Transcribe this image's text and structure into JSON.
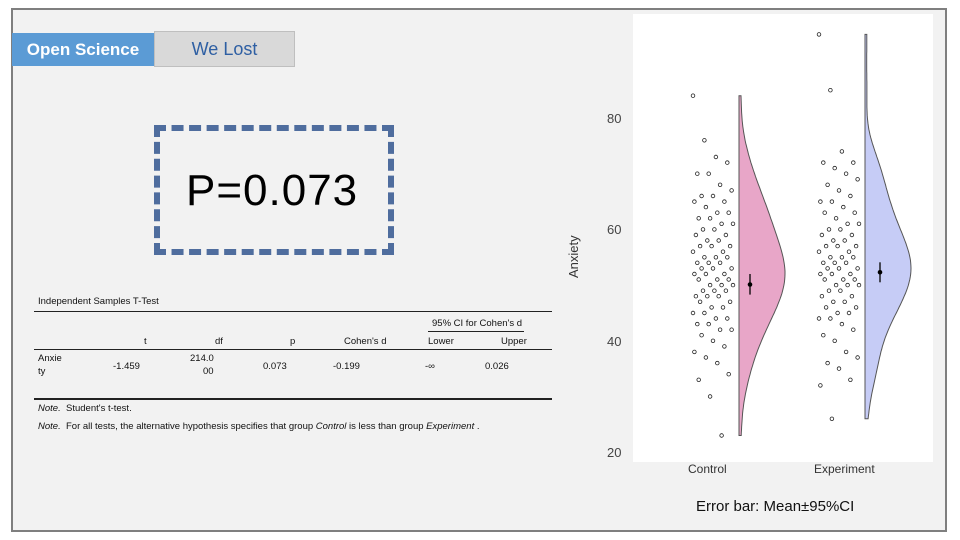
{
  "tabs": {
    "open_science": "Open Science",
    "we_lost": "We Lost"
  },
  "p_value_text": "P=0.073",
  "table": {
    "title": "Independent Samples T-Test",
    "ci_header": "95% CI for Cohen's d",
    "headers": {
      "t": "t",
      "df": "df",
      "p": "p",
      "cohens_d": "Cohen's d",
      "lower": "Lower",
      "upper": "Upper"
    },
    "row": {
      "variable_line1": "Anxie",
      "variable_line2": "ty",
      "t": "-1.459",
      "df_line1": "214.0",
      "df_line2": "00",
      "p": "0.073",
      "cohens_d": "-0.199",
      "lower": "-∞",
      "upper": "0.026"
    },
    "note1_prefix": "Note.",
    "note1_text": "Student's t-test.",
    "note2_prefix": "Note.",
    "note2_a": "For all tests, the alternative hypothesis specifies that group ",
    "note2_control": "Control",
    "note2_b": " is less than group ",
    "note2_experiment": "Experiment",
    "note2_c": " ."
  },
  "chart_data": {
    "type": "raincloud",
    "ylabel": "Anxiety",
    "ylim": [
      20,
      95
    ],
    "yticks": [
      20,
      40,
      60,
      80
    ],
    "categories": [
      "Control",
      "Experiment"
    ],
    "colors": {
      "Control": "#e8a6c8",
      "Experiment": "#c6ccf6"
    },
    "series": [
      {
        "name": "Control",
        "mean": 50.1,
        "ci": [
          48.3,
          52.0
        ],
        "points": [
          84,
          76,
          73,
          72,
          70,
          70,
          68,
          67,
          66,
          66,
          65,
          65,
          64,
          63,
          63,
          62,
          62,
          61,
          61,
          60,
          60,
          59,
          59,
          58,
          58,
          57,
          57,
          57,
          56,
          56,
          55,
          55,
          55,
          54,
          54,
          54,
          53,
          53,
          53,
          52,
          52,
          52,
          51,
          51,
          51,
          50,
          50,
          50,
          49,
          49,
          49,
          48,
          48,
          48,
          47,
          47,
          46,
          46,
          45,
          45,
          44,
          44,
          43,
          43,
          42,
          42,
          41,
          40,
          39,
          38,
          37,
          36,
          34,
          33,
          30,
          23
        ]
      },
      {
        "name": "Experiment",
        "mean": 52.3,
        "ci": [
          50.5,
          54.1
        ],
        "points": [
          95,
          85,
          74,
          72,
          72,
          71,
          70,
          69,
          68,
          67,
          66,
          65,
          65,
          64,
          63,
          63,
          62,
          61,
          61,
          60,
          60,
          59,
          59,
          58,
          58,
          57,
          57,
          57,
          56,
          56,
          55,
          55,
          55,
          54,
          54,
          54,
          53,
          53,
          53,
          52,
          52,
          52,
          51,
          51,
          51,
          50,
          50,
          50,
          49,
          49,
          48,
          48,
          47,
          47,
          46,
          46,
          45,
          45,
          44,
          44,
          43,
          42,
          41,
          40,
          38,
          37,
          36,
          35,
          33,
          32,
          26
        ]
      }
    ]
  },
  "error_note": "Error bar: Mean±95%CI"
}
